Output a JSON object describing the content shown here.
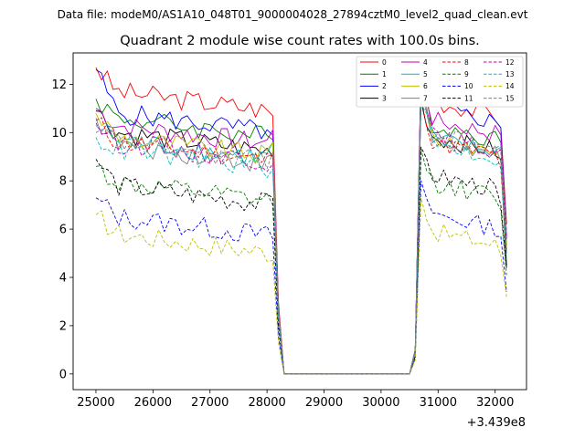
{
  "figure": {
    "suptitle": "Data file: modeM0/AS1A10_048T01_9000004028_27894cztM0_level2_quad_clean.evt"
  },
  "chart_data": {
    "type": "line",
    "title": "Quadrant 2 module wise count rates with 100.0s bins.",
    "xlabel": "",
    "ylabel": "",
    "x_offset_text": "+3.439e8",
    "xlim": [
      24600,
      32550
    ],
    "ylim": [
      -0.65,
      13.3
    ],
    "xticks": [
      25000,
      26000,
      27000,
      28000,
      29000,
      30000,
      31000,
      32000
    ],
    "yticks": [
      0,
      2,
      4,
      6,
      8,
      10,
      12
    ],
    "grid": false,
    "legend_position": "top-right",
    "legend_columns": 4,
    "segment_1": {
      "start": 25000,
      "end": 28100,
      "step": 100
    },
    "drop_points": [
      [
        28100,
        28200,
        28300
      ]
    ],
    "gap": {
      "start": 28300,
      "end": 30500,
      "value": 0
    },
    "rise_points": [
      30500,
      30600,
      30700
    ],
    "segment_2": {
      "start": 30700,
      "end": 32100,
      "step": 100
    },
    "end_point": 32200,
    "series": [
      {
        "name": "0",
        "color": "#ff0000",
        "dash": "solid",
        "start": 12.7,
        "mean1": 11.1,
        "end1": 10.7,
        "peak2": 12.6,
        "mean2": 11.0,
        "end2": 10.2,
        "last": 6.2
      },
      {
        "name": "1",
        "color": "#008000",
        "dash": "solid",
        "start": 11.4,
        "mean1": 10.0,
        "end1": 9.7,
        "peak2": 12.2,
        "mean2": 10.0,
        "end2": 9.6,
        "last": 5.6
      },
      {
        "name": "2",
        "color": "#0000ff",
        "dash": "solid",
        "start": 12.6,
        "mean1": 10.2,
        "end1": 9.9,
        "peak2": 12.5,
        "mean2": 10.7,
        "end2": 10.2,
        "last": 5.7
      },
      {
        "name": "3",
        "color": "#000000",
        "dash": "solid",
        "start": 10.9,
        "mean1": 9.4,
        "end1": 9.0,
        "peak2": 11.3,
        "mean2": 9.5,
        "end2": 8.9,
        "last": 4.5
      },
      {
        "name": "4",
        "color": "#bf00bf",
        "dash": "solid",
        "start": 11.0,
        "mean1": 9.7,
        "end1": 10.1,
        "peak2": 12.4,
        "mean2": 10.2,
        "end2": 9.9,
        "last": 5.7
      },
      {
        "name": "5",
        "color": "#00bfbf",
        "dash": "solid",
        "start": 10.3,
        "mean1": 9.1,
        "end1": 9.6,
        "peak2": 12.0,
        "mean2": 9.4,
        "end2": 9.4,
        "last": 5.4
      },
      {
        "name": "6",
        "color": "#bfbf00",
        "dash": "solid",
        "start": 10.8,
        "mean1": 9.2,
        "end1": 9.6,
        "peak2": 11.7,
        "mean2": 9.5,
        "end2": 9.3,
        "last": 5.3
      },
      {
        "name": "7",
        "color": "#808080",
        "dash": "solid",
        "start": 10.6,
        "mean1": 8.9,
        "end1": 9.1,
        "peak2": 11.8,
        "mean2": 9.3,
        "end2": 8.8,
        "last": 5.0
      },
      {
        "name": "8",
        "color": "#ff0000",
        "dash": "dashed",
        "start": 10.5,
        "mean1": 9.0,
        "end1": 9.0,
        "peak2": 11.5,
        "mean2": 9.3,
        "end2": 8.5,
        "last": 5.1
      },
      {
        "name": "9",
        "color": "#008000",
        "dash": "dashed",
        "start": 8.6,
        "mean1": 7.3,
        "end1": 7.0,
        "peak2": 9.3,
        "mean2": 7.6,
        "end2": 6.8,
        "last": 4.1
      },
      {
        "name": "10",
        "color": "#0000ff",
        "dash": "dashed",
        "start": 7.3,
        "mean1": 5.9,
        "end1": 5.6,
        "peak2": 8.0,
        "mean2": 6.3,
        "end2": 5.7,
        "last": 3.4
      },
      {
        "name": "11",
        "color": "#000000",
        "dash": "dashed",
        "start": 8.9,
        "mean1": 7.2,
        "end1": 7.3,
        "peak2": 9.4,
        "mean2": 7.9,
        "end2": 7.0,
        "last": 4.4
      },
      {
        "name": "12",
        "color": "#bf00bf",
        "dash": "dashed",
        "start": 10.4,
        "mean1": 9.0,
        "end1": 8.7,
        "peak2": 11.4,
        "mean2": 9.5,
        "end2": 9.3,
        "last": 5.6
      },
      {
        "name": "13",
        "color": "#00bfbf",
        "dash": "dashed",
        "start": 9.8,
        "mean1": 8.7,
        "end1": 8.5,
        "peak2": 11.2,
        "mean2": 9.2,
        "end2": 8.8,
        "last": 5.0
      },
      {
        "name": "14",
        "color": "#bfbf00",
        "dash": "dashed",
        "start": 6.6,
        "mean1": 5.2,
        "end1": 4.7,
        "peak2": 7.3,
        "mean2": 5.6,
        "end2": 4.9,
        "last": 3.2
      },
      {
        "name": "15",
        "color": "#808080",
        "dash": "dashed",
        "start": 10.0,
        "mean1": 9.0,
        "end1": 9.2,
        "peak2": 11.9,
        "mean2": 9.6,
        "end2": 9.5,
        "last": 5.8
      }
    ]
  }
}
